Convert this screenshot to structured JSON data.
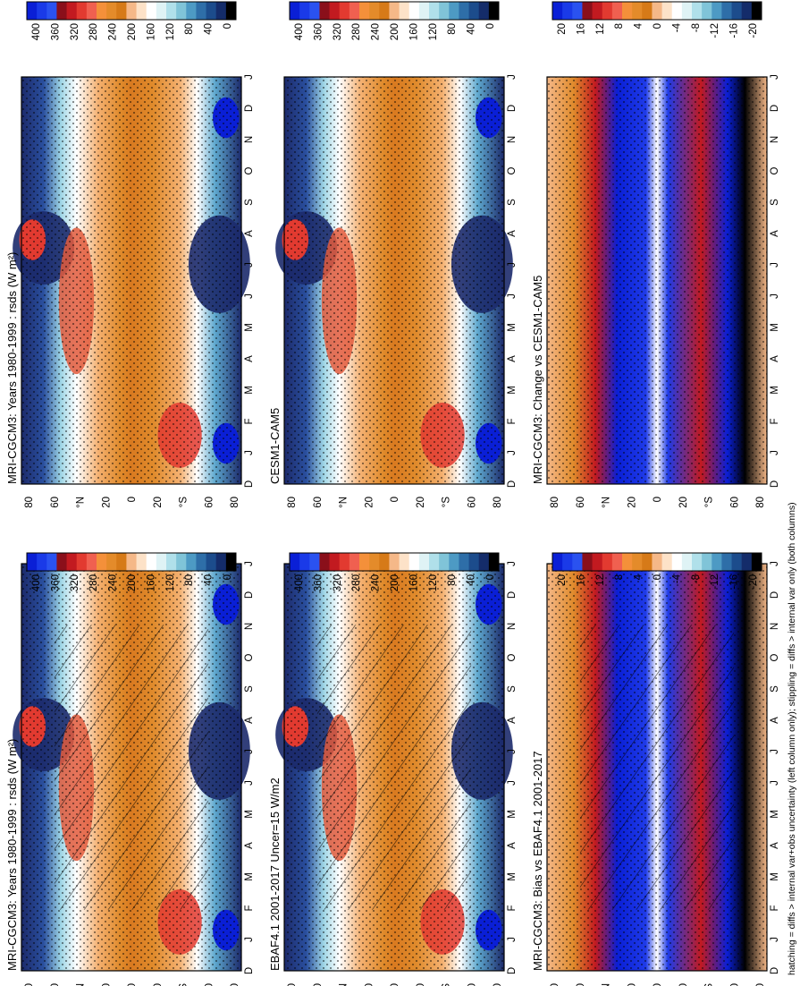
{
  "footnote": "hatching = diffs > internal var+obs uncertainty (left column only); stippling = diffs > internal var only (both columns)",
  "panels": [
    {
      "id": "p1",
      "title": "MRI-CGCM3: Years 1980-1999 : rsds (W m²)",
      "kind": "clim",
      "hatch": true,
      "stipple": true
    },
    {
      "id": "p2",
      "title": "EBAF4.1 2001-2017 Uncer=15 W/m2",
      "kind": "clim",
      "hatch": true,
      "stipple": true
    },
    {
      "id": "p3",
      "title": "MRI-CGCM3: Bias vs EBAF4.1 2001-2017",
      "kind": "bias",
      "hatch": true,
      "stipple": true
    },
    {
      "id": "p4",
      "title": "MRI-CGCM3: Years 1980-1999 : rsds (W m²)",
      "kind": "clim",
      "hatch": false,
      "stipple": true
    },
    {
      "id": "p5",
      "title": "CESM1-CAM5",
      "kind": "clim",
      "hatch": false,
      "stipple": true
    },
    {
      "id": "p6",
      "title": "MRI-CGCM3: Change vs CESM1-CAM5",
      "kind": "bias",
      "hatch": false,
      "stipple": true
    }
  ],
  "months": [
    "D",
    "J",
    "F",
    "M",
    "A",
    "M",
    "J",
    "J",
    "A",
    "S",
    "O",
    "N",
    "D",
    "J"
  ],
  "lat_ticks": [
    "80",
    "60",
    "°N",
    "20",
    "0",
    "20",
    "°S",
    "60",
    "80"
  ],
  "colorbars": {
    "clim": {
      "labels": [
        "400",
        "360",
        "320",
        "280",
        "240",
        "200",
        "160",
        "120",
        "80",
        "40",
        "0"
      ],
      "colors": [
        "#0a1fd6",
        "#1a3ae8",
        "#2a52f0",
        "#8a0f1a",
        "#c21a20",
        "#e23a30",
        "#f06050",
        "#f4903a",
        "#e48b2a",
        "#d67a18",
        "#f5b888",
        "#fde2c8",
        "#ffffff",
        "#dff3f5",
        "#b0e0ea",
        "#80c4d8",
        "#4d9ac4",
        "#2e6ea8",
        "#1c4c8c",
        "#142c6a",
        "#000000"
      ]
    },
    "bias": {
      "labels": [
        "20",
        "16",
        "12",
        "8",
        "4",
        "0",
        "-4",
        "-8",
        "-12",
        "-16",
        "-20"
      ],
      "colors": [
        "#0a1fd6",
        "#1a3ae8",
        "#2a52f0",
        "#8a0f1a",
        "#c21a20",
        "#e23a30",
        "#f06050",
        "#f4903a",
        "#e48b2a",
        "#d67a18",
        "#f5b888",
        "#fde2c8",
        "#ffffff",
        "#dff3f5",
        "#b0e0ea",
        "#80c4d8",
        "#4d9ac4",
        "#2e6ea8",
        "#1c4c8c",
        "#142c6a",
        "#000000"
      ]
    }
  },
  "chart_data": [
    {
      "type": "heatmap",
      "panel": "MRI-CGCM3 climatology rsds 1980-1999",
      "x": [
        "D",
        "J",
        "F",
        "M",
        "A",
        "M",
        "J",
        "J",
        "A",
        "S",
        "O",
        "N",
        "D",
        "J"
      ],
      "y": [
        "80N",
        "60N",
        "40N",
        "20N",
        "0",
        "20S",
        "40S",
        "60S",
        "80S"
      ],
      "zlim": [
        0,
        400
      ],
      "units": "W m^2"
    },
    {
      "type": "heatmap",
      "panel": "EBAF4.1 2001-2017",
      "zlim": [
        0,
        400
      ]
    },
    {
      "type": "heatmap",
      "panel": "Bias vs EBAF4.1",
      "zlim": [
        -20,
        20
      ]
    },
    {
      "type": "heatmap",
      "panel": "MRI-CGCM3 climatology (right column)",
      "zlim": [
        0,
        400
      ]
    },
    {
      "type": "heatmap",
      "panel": "CESM1-CAM5",
      "zlim": [
        0,
        400
      ]
    },
    {
      "type": "heatmap",
      "panel": "Change vs CESM1-CAM5",
      "zlim": [
        -20,
        20
      ]
    }
  ]
}
